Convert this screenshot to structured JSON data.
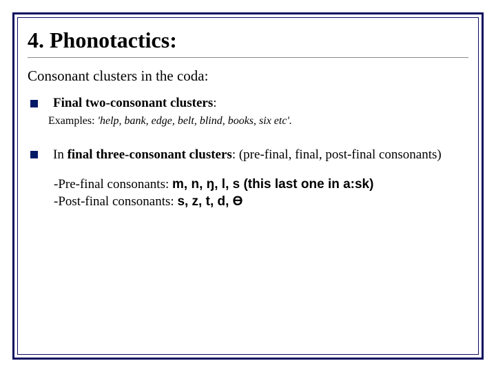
{
  "title": "4. Phonotactics:",
  "subheading": "Consonant clusters in the coda:",
  "bullet1": {
    "head_bold": "Final two-consonant clusters",
    "head_tail": ":",
    "examples_label": "Examples: ",
    "examples_italic": "'help, bank, edge, belt, blind, books, six etc'.",
    "examples_tail": ""
  },
  "bullet2": {
    "lead": "In ",
    "bold": "final three-consonant clusters",
    "tail": ": (pre-final, final, post-final consonants)"
  },
  "sub": {
    "line1_a": "-Pre-final consonants: ",
    "line1_b": "m, n, ŋ, l, s (this last one in a:sk)",
    "line2_a": "-Post-final consonants: ",
    "line2_b": "s, z, t, d, Ɵ"
  },
  "colors": {
    "frame": "#0a0a60",
    "bullet": "#001a66",
    "text": "#000000",
    "bg": "#ffffff",
    "hr": "#888888"
  },
  "fonts": {
    "body": "Times New Roman",
    "title_size_pt": 32,
    "subhead_size_pt": 21,
    "bullet_size_pt": 19,
    "examples_size_pt": 16
  }
}
